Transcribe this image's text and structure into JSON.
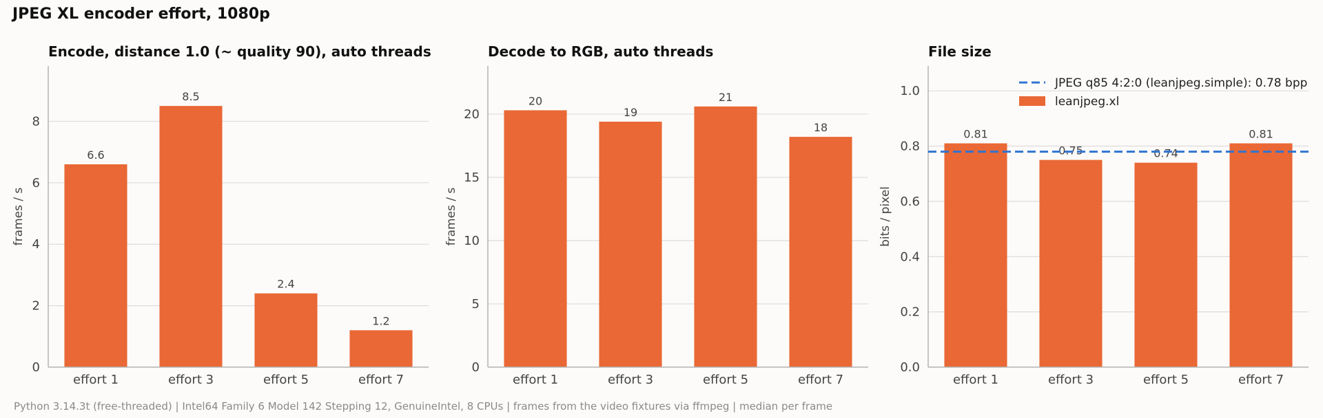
{
  "title": "JPEG XL encoder effort, 1080p",
  "footer": "Python 3.14.3t (free-threaded) | Intel64 Family 6 Model 142 Stepping 12, GenuineIntel, 8 CPUs | frames from the video fixtures via ffmpeg | median per frame",
  "colors": {
    "bar": "#e96835",
    "reference_line": "#2f74d0",
    "background": "#fcfbf9"
  },
  "chart_data": [
    {
      "type": "bar",
      "title": "Encode, distance 1.0 (~ quality 90), auto threads",
      "ylabel": "frames / s",
      "categories": [
        "effort 1",
        "effort 3",
        "effort 5",
        "effort 7"
      ],
      "values": [
        6.6,
        8.5,
        2.4,
        1.2
      ],
      "labels": [
        "6.6",
        "8.5",
        "2.4",
        "1.2"
      ],
      "ylim": [
        0,
        9.8
      ],
      "yticks": [
        0,
        2,
        4,
        6,
        8
      ],
      "yticklabels": [
        "0",
        "2",
        "4",
        "6",
        "8"
      ],
      "grid": true
    },
    {
      "type": "bar",
      "title": "Decode to RGB, auto threads",
      "ylabel": "frames / s",
      "categories": [
        "effort 1",
        "effort 3",
        "effort 5",
        "effort 7"
      ],
      "values": [
        20.3,
        19.4,
        20.6,
        18.2
      ],
      "labels": [
        "20",
        "19",
        "21",
        "18"
      ],
      "ylim": [
        0,
        23.8
      ],
      "yticks": [
        0,
        5,
        10,
        15,
        20
      ],
      "yticklabels": [
        "0",
        "5",
        "10",
        "15",
        "20"
      ],
      "grid": true
    },
    {
      "type": "bar",
      "title": "File size",
      "ylabel": "bits / pixel",
      "categories": [
        "effort 1",
        "effort 3",
        "effort 5",
        "effort 7"
      ],
      "values": [
        0.81,
        0.75,
        0.74,
        0.81
      ],
      "labels": [
        "0.81",
        "0.75",
        "0.74",
        "0.81"
      ],
      "ylim": [
        0,
        1.09
      ],
      "yticks": [
        0,
        0.2,
        0.4,
        0.6,
        0.8,
        1.0
      ],
      "yticklabels": [
        "0.0",
        "0.2",
        "0.4",
        "0.6",
        "0.8",
        "1.0"
      ],
      "grid": true,
      "reference_line": {
        "value": 0.78,
        "label": "JPEG q85 4:2:0 (leanjpeg.simple): 0.78 bpp",
        "style": "dashed"
      },
      "legend": {
        "placement": "top-right",
        "entries": [
          "JPEG q85 4:2:0 (leanjpeg.simple): 0.78 bpp",
          "leanjpeg.xl"
        ]
      }
    }
  ]
}
